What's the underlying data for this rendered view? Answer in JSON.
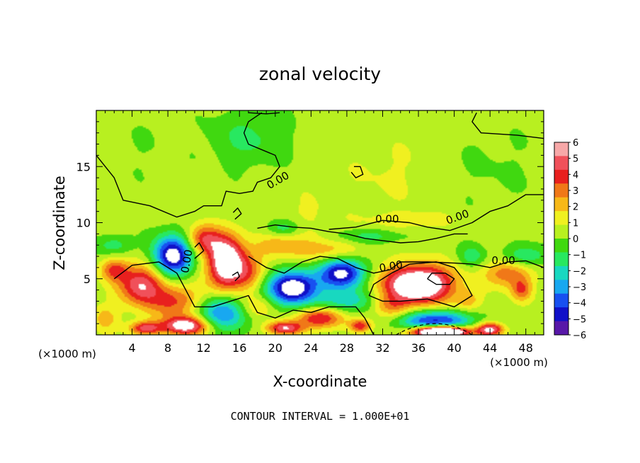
{
  "chart_data": {
    "type": "heatmap",
    "title": "zonal velocity",
    "xlabel": "X-coordinate",
    "ylabel": "Z-coordinate",
    "x_unit_label": "(×1000 m)",
    "x_unit_label_right": "(×1000 m)",
    "xlim": [
      0,
      50
    ],
    "ylim": [
      0,
      20
    ],
    "x_ticks": [
      "4",
      "8",
      "12",
      "16",
      "20",
      "24",
      "28",
      "32",
      "36",
      "40",
      "44",
      "48"
    ],
    "y_ticks": [
      "5",
      "10",
      "15"
    ],
    "footer": "CONTOUR INTERVAL = 1.000E+01",
    "contour_labels": [
      "0.00",
      "0.00",
      "0.00",
      "0.00",
      "0.00",
      "0.00"
    ],
    "colorbar": {
      "ticks": [
        "6",
        "5",
        "4",
        "3",
        "2",
        "1",
        "0",
        "−1",
        "−2",
        "−3",
        "−4",
        "−5",
        "−6"
      ],
      "colors": [
        "#f7a8a8",
        "#f0505a",
        "#e8201e",
        "#f07818",
        "#f7b818",
        "#f0f020",
        "#b8f020",
        "#40d810",
        "#28e860",
        "#18d8c0",
        "#18a8f0",
        "#1850f0",
        "#1010c8",
        "#5818a8"
      ]
    },
    "features": [
      {
        "x": 23.5,
        "y": 9.8,
        "sx": 3.5,
        "sy": 3.0,
        "v": 0.8
      },
      {
        "x": 17.0,
        "y": 17.5,
        "sx": 4.5,
        "sy": 2.5,
        "v": -1.6
      },
      {
        "x": 44.0,
        "y": 15.0,
        "sx": 6.0,
        "sy": 4.0,
        "v": -0.5
      },
      {
        "x": 33.0,
        "y": 14.5,
        "sx": 6.0,
        "sy": 3.5,
        "v": 0.7
      },
      {
        "x": 4.0,
        "y": 16.5,
        "sx": 4.0,
        "sy": 3.0,
        "v": -0.4
      },
      {
        "x": 5.0,
        "y": 4.5,
        "sx": 2.5,
        "sy": 1.8,
        "v": 5.6
      },
      {
        "x": 2.0,
        "y": 5.8,
        "sx": 1.5,
        "sy": 1.0,
        "v": 3.5
      },
      {
        "x": 9.0,
        "y": 3.0,
        "sx": 3.0,
        "sy": 1.6,
        "v": 3.8
      },
      {
        "x": 10.0,
        "y": 0.8,
        "sx": 2.5,
        "sy": 0.8,
        "v": 7.0
      },
      {
        "x": 5.5,
        "y": 0.6,
        "sx": 1.8,
        "sy": 0.6,
        "v": 5.0
      },
      {
        "x": 8.5,
        "y": 7.0,
        "sx": 2.2,
        "sy": 1.8,
        "v": -7.5
      },
      {
        "x": 14.5,
        "y": 6.5,
        "sx": 2.0,
        "sy": 2.4,
        "v": 8.0
      },
      {
        "x": 12.0,
        "y": 8.5,
        "sx": 1.8,
        "sy": 1.3,
        "v": 4.0
      },
      {
        "x": 17.0,
        "y": 5.5,
        "sx": 1.8,
        "sy": 1.6,
        "v": 3.0
      },
      {
        "x": 14.0,
        "y": 2.0,
        "sx": 3.0,
        "sy": 1.6,
        "v": -4.5
      },
      {
        "x": 20.0,
        "y": 8.0,
        "sx": 2.5,
        "sy": 1.2,
        "v": 2.2
      },
      {
        "x": 26.0,
        "y": 7.5,
        "sx": 4.0,
        "sy": 1.0,
        "v": 2.0
      },
      {
        "x": 22.0,
        "y": 4.2,
        "sx": 2.8,
        "sy": 1.5,
        "v": -8.0
      },
      {
        "x": 27.5,
        "y": 5.5,
        "sx": 2.5,
        "sy": 1.4,
        "v": -7.0
      },
      {
        "x": 28.0,
        "y": 3.0,
        "sx": 3.0,
        "sy": 1.0,
        "v": -3.0
      },
      {
        "x": 25.0,
        "y": 1.5,
        "sx": 2.5,
        "sy": 0.9,
        "v": 5.0
      },
      {
        "x": 21.0,
        "y": 0.6,
        "sx": 2.0,
        "sy": 0.6,
        "v": 5.5
      },
      {
        "x": 29.5,
        "y": 0.8,
        "sx": 1.2,
        "sy": 0.6,
        "v": 4.5
      },
      {
        "x": 36.0,
        "y": 4.5,
        "sx": 3.8,
        "sy": 1.7,
        "v": 9.0
      },
      {
        "x": 38.0,
        "y": 1.2,
        "sx": 4.0,
        "sy": 1.0,
        "v": -6.0
      },
      {
        "x": 38.5,
        "y": 0.3,
        "sx": 3.0,
        "sy": 0.5,
        "v": 14.0
      },
      {
        "x": 30.5,
        "y": 8.8,
        "sx": 4.0,
        "sy": 0.7,
        "v": -1.8
      },
      {
        "x": 21.0,
        "y": 9.5,
        "sx": 2.0,
        "sy": 0.8,
        "v": -2.5
      },
      {
        "x": 35.0,
        "y": 10.2,
        "sx": 5.0,
        "sy": 0.8,
        "v": 1.2
      },
      {
        "x": 46.0,
        "y": 5.5,
        "sx": 2.5,
        "sy": 1.2,
        "v": 3.5
      },
      {
        "x": 47.5,
        "y": 4.0,
        "sx": 1.2,
        "sy": 1.0,
        "v": 3.5
      },
      {
        "x": 44.0,
        "y": 0.5,
        "sx": 1.5,
        "sy": 0.6,
        "v": 6.0
      },
      {
        "x": 48.0,
        "y": 7.0,
        "sx": 2.5,
        "sy": 1.0,
        "v": -2.5
      },
      {
        "x": 42.0,
        "y": 7.0,
        "sx": 1.5,
        "sy": 1.0,
        "v": -2.0
      },
      {
        "x": 2.0,
        "y": 8.0,
        "sx": 2.0,
        "sy": 0.9,
        "v": -2.0
      },
      {
        "x": 1.0,
        "y": 1.5,
        "sx": 1.5,
        "sy": 1.2,
        "v": 2.0
      },
      {
        "x": 18.0,
        "y": 2.5,
        "sx": 2.0,
        "sy": 1.0,
        "v": 2.0
      },
      {
        "x": 33.0,
        "y": 2.5,
        "sx": 2.0,
        "sy": 1.0,
        "v": 2.5
      },
      {
        "x": 41.5,
        "y": 3.0,
        "sx": 1.5,
        "sy": 1.0,
        "v": 2.0
      }
    ],
    "contours": [
      {
        "pts": [
          [
            0,
            16
          ],
          [
            2,
            14
          ],
          [
            3,
            12
          ],
          [
            6,
            11.5
          ],
          [
            9,
            10.5
          ],
          [
            11,
            11
          ],
          [
            12,
            11.5
          ],
          [
            14,
            11.5
          ],
          [
            14.5,
            12.8
          ],
          [
            16,
            12.6
          ],
          [
            17.5,
            12.8
          ],
          [
            18,
            13.6
          ],
          [
            19.5,
            14
          ],
          [
            20.5,
            15
          ],
          [
            20,
            16
          ],
          [
            17,
            17
          ],
          [
            16.5,
            18
          ],
          [
            17,
            19
          ],
          [
            18.5,
            19.8
          ]
        ]
      },
      {
        "pts": [
          [
            17,
            19.8
          ],
          [
            19,
            19.7
          ],
          [
            20.5,
            19.8
          ]
        ]
      },
      {
        "pts": [
          [
            35,
            6.3
          ],
          [
            33,
            5.5
          ],
          [
            31,
            4.5
          ],
          [
            30.5,
            3.5
          ],
          [
            32,
            3
          ],
          [
            34,
            3
          ],
          [
            37,
            3.2
          ],
          [
            40,
            2.5
          ],
          [
            42,
            3.5
          ],
          [
            41,
            5
          ],
          [
            40,
            6
          ],
          [
            38,
            6.5
          ],
          [
            35,
            6.3
          ]
        ]
      },
      {
        "pts": [
          [
            26,
            9.4
          ],
          [
            29,
            9.6
          ],
          [
            32,
            10.2
          ],
          [
            35,
            10
          ],
          [
            37,
            9.6
          ],
          [
            39.5,
            9.3
          ],
          [
            42,
            10
          ],
          [
            44,
            11
          ],
          [
            46,
            11.5
          ],
          [
            48,
            12.5
          ],
          [
            50,
            12.5
          ]
        ]
      },
      {
        "pts": [
          [
            50,
            17.5
          ],
          [
            47,
            17.8
          ],
          [
            43,
            18
          ],
          [
            42,
            19
          ],
          [
            42.5,
            19.8
          ]
        ]
      },
      {
        "pts": [
          [
            17,
            7
          ],
          [
            19,
            6
          ],
          [
            21,
            5.5
          ],
          [
            23,
            6.5
          ],
          [
            25,
            7
          ],
          [
            27,
            6.8
          ],
          [
            29,
            6
          ],
          [
            31,
            5.5
          ],
          [
            32.8,
            5.8
          ],
          [
            34,
            6.5
          ],
          [
            37,
            6.5
          ],
          [
            40,
            6.4
          ],
          [
            42,
            6.3
          ],
          [
            44,
            6
          ],
          [
            46,
            6.5
          ],
          [
            48,
            6.6
          ],
          [
            50,
            6
          ]
        ]
      },
      {
        "pts": [
          [
            2,
            5
          ],
          [
            4,
            6.2
          ],
          [
            7,
            6.5
          ],
          [
            9,
            5.5
          ],
          [
            10,
            4
          ],
          [
            11,
            2.5
          ],
          [
            13,
            2.5
          ],
          [
            15,
            3
          ],
          [
            17,
            3.5
          ],
          [
            18,
            2
          ],
          [
            20,
            1.5
          ],
          [
            22,
            2.2
          ],
          [
            24,
            2
          ],
          [
            26,
            2.5
          ],
          [
            29,
            2.5
          ],
          [
            30,
            1.5
          ],
          [
            31,
            0
          ]
        ]
      },
      {
        "pts": [
          [
            18,
            9.5
          ],
          [
            20,
            9.8
          ],
          [
            22,
            9.6
          ],
          [
            24,
            9.5
          ],
          [
            26,
            9.2
          ],
          [
            28,
            9
          ],
          [
            30,
            8.6
          ],
          [
            32,
            8.4
          ],
          [
            34,
            8.2
          ],
          [
            36,
            8.3
          ],
          [
            38,
            8.6
          ],
          [
            40,
            9
          ],
          [
            41.5,
            9
          ]
        ]
      },
      {
        "pts": [
          [
            28.5,
            14.5
          ],
          [
            29,
            14
          ],
          [
            29.8,
            14.3
          ],
          [
            29.5,
            15
          ],
          [
            28.8,
            15
          ]
        ]
      },
      {
        "pts": [
          [
            37,
            5
          ],
          [
            38,
            4.5
          ],
          [
            39.5,
            4.5
          ],
          [
            40,
            5
          ],
          [
            39,
            5.5
          ],
          [
            37.5,
            5.5
          ],
          [
            37,
            5
          ]
        ]
      },
      {
        "pts": [
          [
            11,
            6.8
          ],
          [
            12,
            7.5
          ],
          [
            11.5,
            8.2
          ],
          [
            11,
            7.8
          ]
        ]
      },
      {
        "pts": [
          [
            15.5,
            4.8
          ],
          [
            16,
            5.2
          ],
          [
            15.8,
            5.6
          ],
          [
            15.2,
            5.3
          ]
        ]
      },
      {
        "pts": [
          [
            15.5,
            10.3
          ],
          [
            16.2,
            10.8
          ],
          [
            15.8,
            11.3
          ],
          [
            15.3,
            10.9
          ]
        ]
      }
    ]
  }
}
